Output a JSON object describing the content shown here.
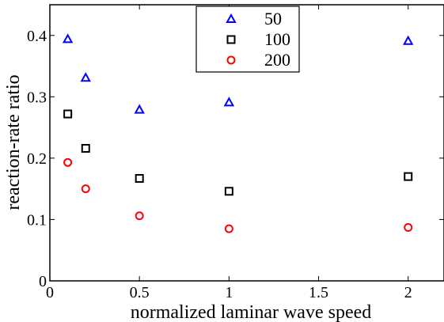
{
  "chart_data": {
    "type": "scatter",
    "title": "",
    "xlabel": "normalized laminar wave speed",
    "ylabel": "reaction-rate ratio",
    "xlim": [
      0,
      2.2
    ],
    "ylim": [
      0,
      0.45
    ],
    "x_ticks": [
      0,
      0.5,
      1,
      1.5,
      2
    ],
    "x_tick_labels": [
      "0",
      "0.5",
      "1",
      "1.5",
      "2"
    ],
    "y_ticks": [
      0,
      0.1,
      0.2,
      0.3,
      0.4
    ],
    "y_tick_labels": [
      "0",
      "0.1",
      "0.2",
      "0.3",
      "0.4"
    ],
    "grid": false,
    "legend_position": "top-center",
    "series": [
      {
        "name": "50",
        "marker": "triangle",
        "color": "#0000ff",
        "x": [
          0.1,
          0.2,
          0.5,
          1,
          2
        ],
        "y": [
          0.394,
          0.331,
          0.279,
          0.291,
          0.391
        ]
      },
      {
        "name": "100",
        "marker": "square",
        "color": "#000000",
        "x": [
          0.1,
          0.2,
          0.5,
          1,
          2
        ],
        "y": [
          0.272,
          0.216,
          0.167,
          0.146,
          0.17
        ]
      },
      {
        "name": "200",
        "marker": "circle",
        "color": "#ff0000",
        "x": [
          0.1,
          0.2,
          0.5,
          1,
          2
        ],
        "y": [
          0.193,
          0.15,
          0.106,
          0.085,
          0.087
        ]
      }
    ]
  }
}
